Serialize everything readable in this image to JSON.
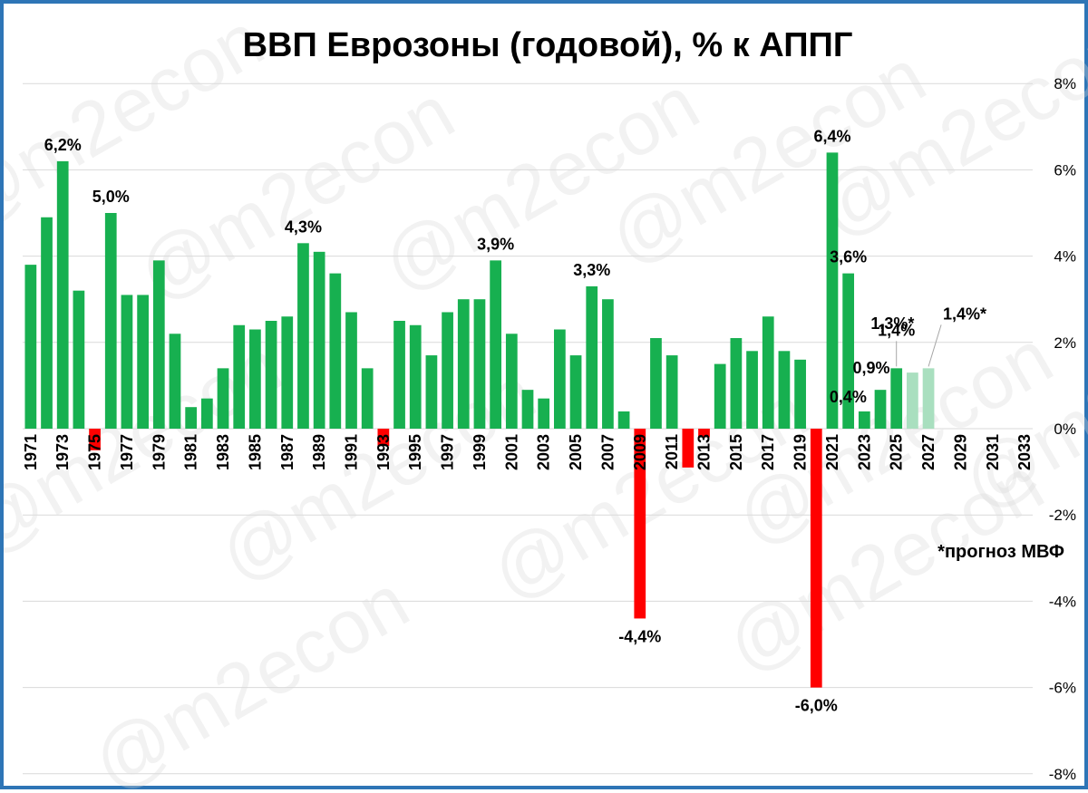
{
  "chart_data": {
    "type": "bar",
    "title": "ВВП Еврозоны (годовой), % к АППГ",
    "note": "*прогноз МВФ",
    "watermark": "@m2econ",
    "ylim": [
      -8,
      8
    ],
    "ytick_values": [
      8,
      6,
      4,
      2,
      0,
      -2,
      -4,
      -6,
      -8
    ],
    "ytick_labels": [
      "8%",
      "6%",
      "4%",
      "2%",
      "0%",
      "-2%",
      "-4%",
      "-6%",
      "-8%"
    ],
    "grid": true,
    "colors": {
      "positive": "#17B050",
      "negative": "#FF0000",
      "forecast": "#A9DFBF",
      "grid": "#D9D9D9",
      "border": "#2E75B6"
    },
    "years": [
      1971,
      1972,
      1973,
      1974,
      1975,
      1976,
      1977,
      1978,
      1979,
      1980,
      1981,
      1982,
      1983,
      1984,
      1985,
      1986,
      1987,
      1988,
      1989,
      1990,
      1991,
      1992,
      1993,
      1994,
      1995,
      1996,
      1997,
      1998,
      1999,
      2000,
      2001,
      2002,
      2003,
      2004,
      2005,
      2006,
      2007,
      2008,
      2009,
      2010,
      2011,
      2012,
      2013,
      2014,
      2015,
      2016,
      2017,
      2018,
      2019,
      2020,
      2021,
      2022,
      2023,
      2024,
      2025,
      2026,
      2027,
      2028,
      2029,
      2030,
      2031,
      2032,
      2033
    ],
    "xtick_labels": [
      "1971",
      "1973",
      "1975",
      "1977",
      "1979",
      "1981",
      "1983",
      "1985",
      "1987",
      "1989",
      "1991",
      "1993",
      "1995",
      "1997",
      "1999",
      "2001",
      "2003",
      "2005",
      "2007",
      "2009",
      "2011",
      "2013",
      "2015",
      "2017",
      "2019",
      "2021",
      "2023",
      "2025",
      "2027",
      "2029",
      "2031",
      "2033"
    ],
    "values": [
      3.8,
      4.9,
      6.2,
      3.2,
      -0.5,
      5.0,
      3.1,
      3.1,
      3.9,
      2.2,
      0.5,
      0.7,
      1.4,
      2.4,
      2.3,
      2.5,
      2.6,
      4.3,
      4.1,
      3.6,
      2.7,
      1.4,
      -0.4,
      2.5,
      2.4,
      1.7,
      2.7,
      3.0,
      3.0,
      3.9,
      2.2,
      0.9,
      0.7,
      2.3,
      1.7,
      3.3,
      3.0,
      0.4,
      -4.4,
      2.1,
      1.7,
      -0.9,
      -0.2,
      1.5,
      2.1,
      1.8,
      2.6,
      1.8,
      1.6,
      -6.0,
      6.4,
      3.6,
      0.4,
      0.9,
      1.4,
      1.3,
      1.4,
      null,
      null,
      null,
      null,
      null,
      null
    ],
    "forecast_years": [
      2026,
      2027
    ],
    "data_labels": [
      {
        "year": 1973,
        "text": "6,2%"
      },
      {
        "year": 1976,
        "text": "5,0%"
      },
      {
        "year": 1988,
        "text": "4,3%"
      },
      {
        "year": 2000,
        "text": "3,9%"
      },
      {
        "year": 2006,
        "text": "3,3%"
      },
      {
        "year": 2009,
        "text": "-4,4%"
      },
      {
        "year": 2020,
        "text": "-6,0%"
      },
      {
        "year": 2021,
        "text": "6,4%"
      },
      {
        "year": 2022,
        "text": "3,6%"
      },
      {
        "year": 2023,
        "text": "0,4%"
      },
      {
        "year": 2024,
        "text": "0,9%"
      },
      {
        "year": 2025,
        "text": "1,4%"
      },
      {
        "year": 2026,
        "text": "1,3%*"
      },
      {
        "year": 2027,
        "text": "1,4%*"
      }
    ]
  }
}
